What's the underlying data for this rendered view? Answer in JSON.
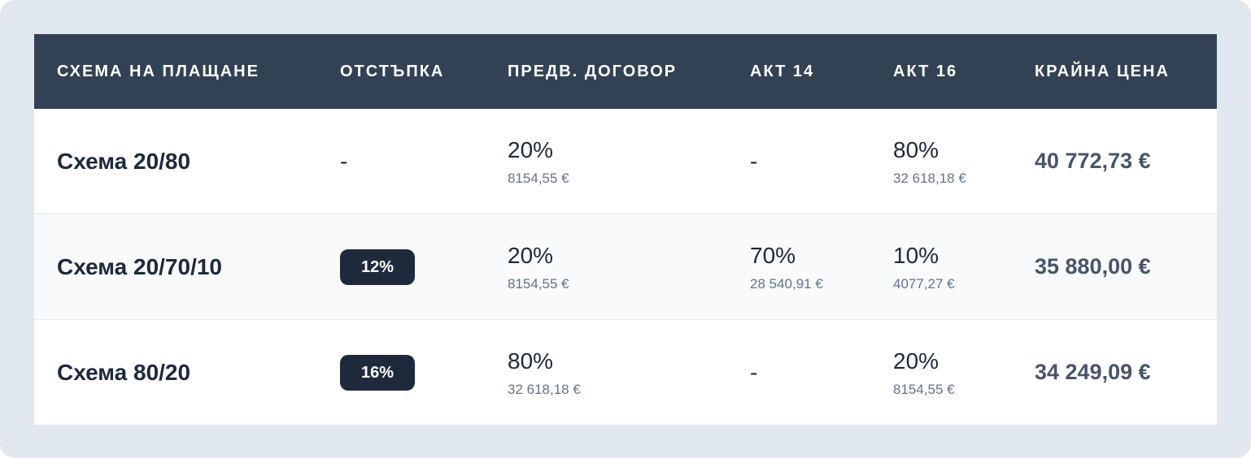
{
  "headers": [
    "СХЕМА НА ПЛАЩАНЕ",
    "ОТСТЪПКА",
    "ПРЕДВ. ДОГОВОР",
    "АКТ 14",
    "АКТ 16",
    "КРАЙНА ЦЕНА"
  ],
  "rows": [
    {
      "name": "Схема 20/80",
      "discount": "-",
      "prelim": {
        "pct": "20%",
        "amt": "8154,55 €"
      },
      "act14": {
        "pct": "-",
        "amt": ""
      },
      "act16": {
        "pct": "80%",
        "amt": "32 618,18 €"
      },
      "final": "40 772,73 €"
    },
    {
      "name": "Схема 20/70/10",
      "discount": "12%",
      "prelim": {
        "pct": "20%",
        "amt": "8154,55 €"
      },
      "act14": {
        "pct": "70%",
        "amt": "28 540,91 €"
      },
      "act16": {
        "pct": "10%",
        "amt": "4077,27 €"
      },
      "final": "35 880,00 €"
    },
    {
      "name": "Схема 80/20",
      "discount": "16%",
      "prelim": {
        "pct": "80%",
        "amt": "32 618,18 €"
      },
      "act14": {
        "pct": "-",
        "amt": ""
      },
      "act16": {
        "pct": "20%",
        "amt": "8154,55 €"
      },
      "final": "34 249,09 €"
    }
  ],
  "colors": {
    "header_bg": "#334155",
    "badge_bg": "#1e293b",
    "page_bg": "#e2e8f0"
  }
}
